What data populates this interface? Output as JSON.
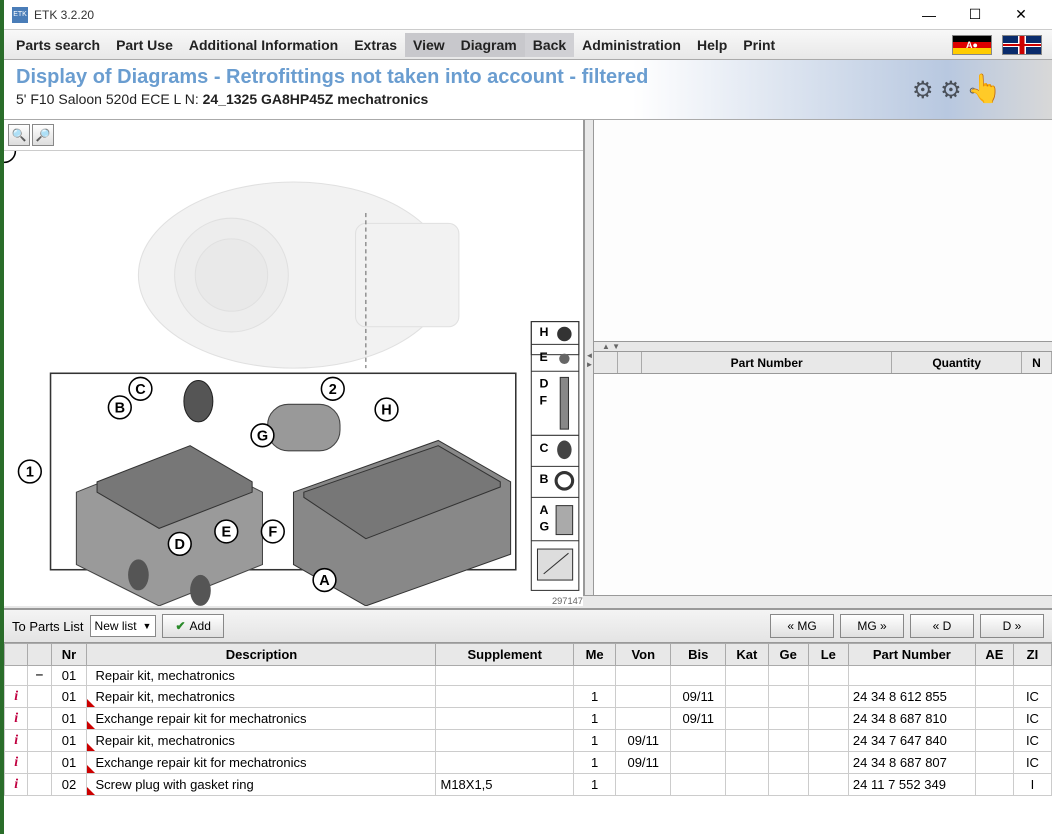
{
  "window": {
    "title": "ETK 3.2.20"
  },
  "menu": {
    "parts_search": "Parts search",
    "part_use": "Part Use",
    "additional_info": "Additional Information",
    "extras": "Extras",
    "view": "View",
    "diagram": "Diagram",
    "back": "Back",
    "administration": "Administration",
    "help": "Help",
    "print": "Print"
  },
  "banner": {
    "title": "Display of Diagrams - Retrofittings not taken into account - filtered",
    "sub_prefix": "5' F10 Saloon 520d ECE  L N: ",
    "sub_bold": "24_1325 GA8HP45Z mechatronics"
  },
  "zoom": {
    "in": "⊕",
    "out": "⊖"
  },
  "diagram": {
    "ref_number": "297147",
    "callouts": [
      "1",
      "2",
      "A",
      "B",
      "C",
      "D",
      "E",
      "F",
      "G",
      "H"
    ],
    "side_labels": [
      "H",
      "E",
      "D",
      "F",
      "C",
      "B",
      "A",
      "G"
    ]
  },
  "right_header": {
    "part_number": "Part Number",
    "quantity": "Quantity",
    "n": "N"
  },
  "actionbar": {
    "to_parts_list": "To Parts List",
    "dropdown_value": "New list",
    "add": "Add",
    "nav": {
      "mg_prev": "« MG",
      "mg_next": "MG »",
      "d_prev": "« D",
      "d_next": "D »"
    }
  },
  "table": {
    "headers": {
      "info": "",
      "expand": "",
      "nr": "Nr",
      "desc": "Description",
      "supp": "Supplement",
      "me": "Me",
      "von": "Von",
      "bis": "Bis",
      "kat": "Kat",
      "ge": "Ge",
      "le": "Le",
      "part": "Part Number",
      "ae": "AE",
      "zi": "ZI"
    },
    "rows": [
      {
        "info": "",
        "expand": "−",
        "nr": "01",
        "desc": "Repair kit, mechatronics",
        "supp": "",
        "me": "",
        "von": "",
        "bis": "",
        "kat": "",
        "ge": "",
        "le": "",
        "part": "",
        "ae": "",
        "zi": "",
        "red": false
      },
      {
        "info": "i",
        "expand": "",
        "nr": "01",
        "desc": "Repair kit, mechatronics",
        "supp": "",
        "me": "1",
        "von": "",
        "bis": "09/11",
        "kat": "",
        "ge": "",
        "le": "",
        "part": "24 34 8 612 855",
        "ae": "",
        "zi": "IC",
        "red": true
      },
      {
        "info": "i",
        "expand": "",
        "nr": "01",
        "desc": "Exchange repair kit for mechatronics",
        "supp": "",
        "me": "1",
        "von": "",
        "bis": "09/11",
        "kat": "",
        "ge": "",
        "le": "",
        "part": "24 34 8 687 810",
        "ae": "",
        "zi": "IC",
        "red": true
      },
      {
        "info": "i",
        "expand": "",
        "nr": "01",
        "desc": "Repair kit, mechatronics",
        "supp": "",
        "me": "1",
        "von": "09/11",
        "bis": "",
        "kat": "",
        "ge": "",
        "le": "",
        "part": "24 34 7 647 840",
        "ae": "",
        "zi": "IC",
        "red": true
      },
      {
        "info": "i",
        "expand": "",
        "nr": "01",
        "desc": "Exchange repair kit for mechatronics",
        "supp": "",
        "me": "1",
        "von": "09/11",
        "bis": "",
        "kat": "",
        "ge": "",
        "le": "",
        "part": "24 34 8 687 807",
        "ae": "",
        "zi": "IC",
        "red": true
      },
      {
        "info": "i",
        "expand": "",
        "nr": "02",
        "desc": "Screw plug with gasket ring",
        "supp": "M18X1,5",
        "me": "1",
        "von": "",
        "bis": "",
        "kat": "",
        "ge": "",
        "le": "",
        "part": "24 11 7 552 349",
        "ae": "",
        "zi": "I",
        "red": true
      }
    ]
  },
  "colors": {
    "accent_green": "#2a6d2a",
    "banner_blue": "#6a9dd0",
    "header_bg": "#e8e8e8",
    "info_red": "#c00040"
  }
}
